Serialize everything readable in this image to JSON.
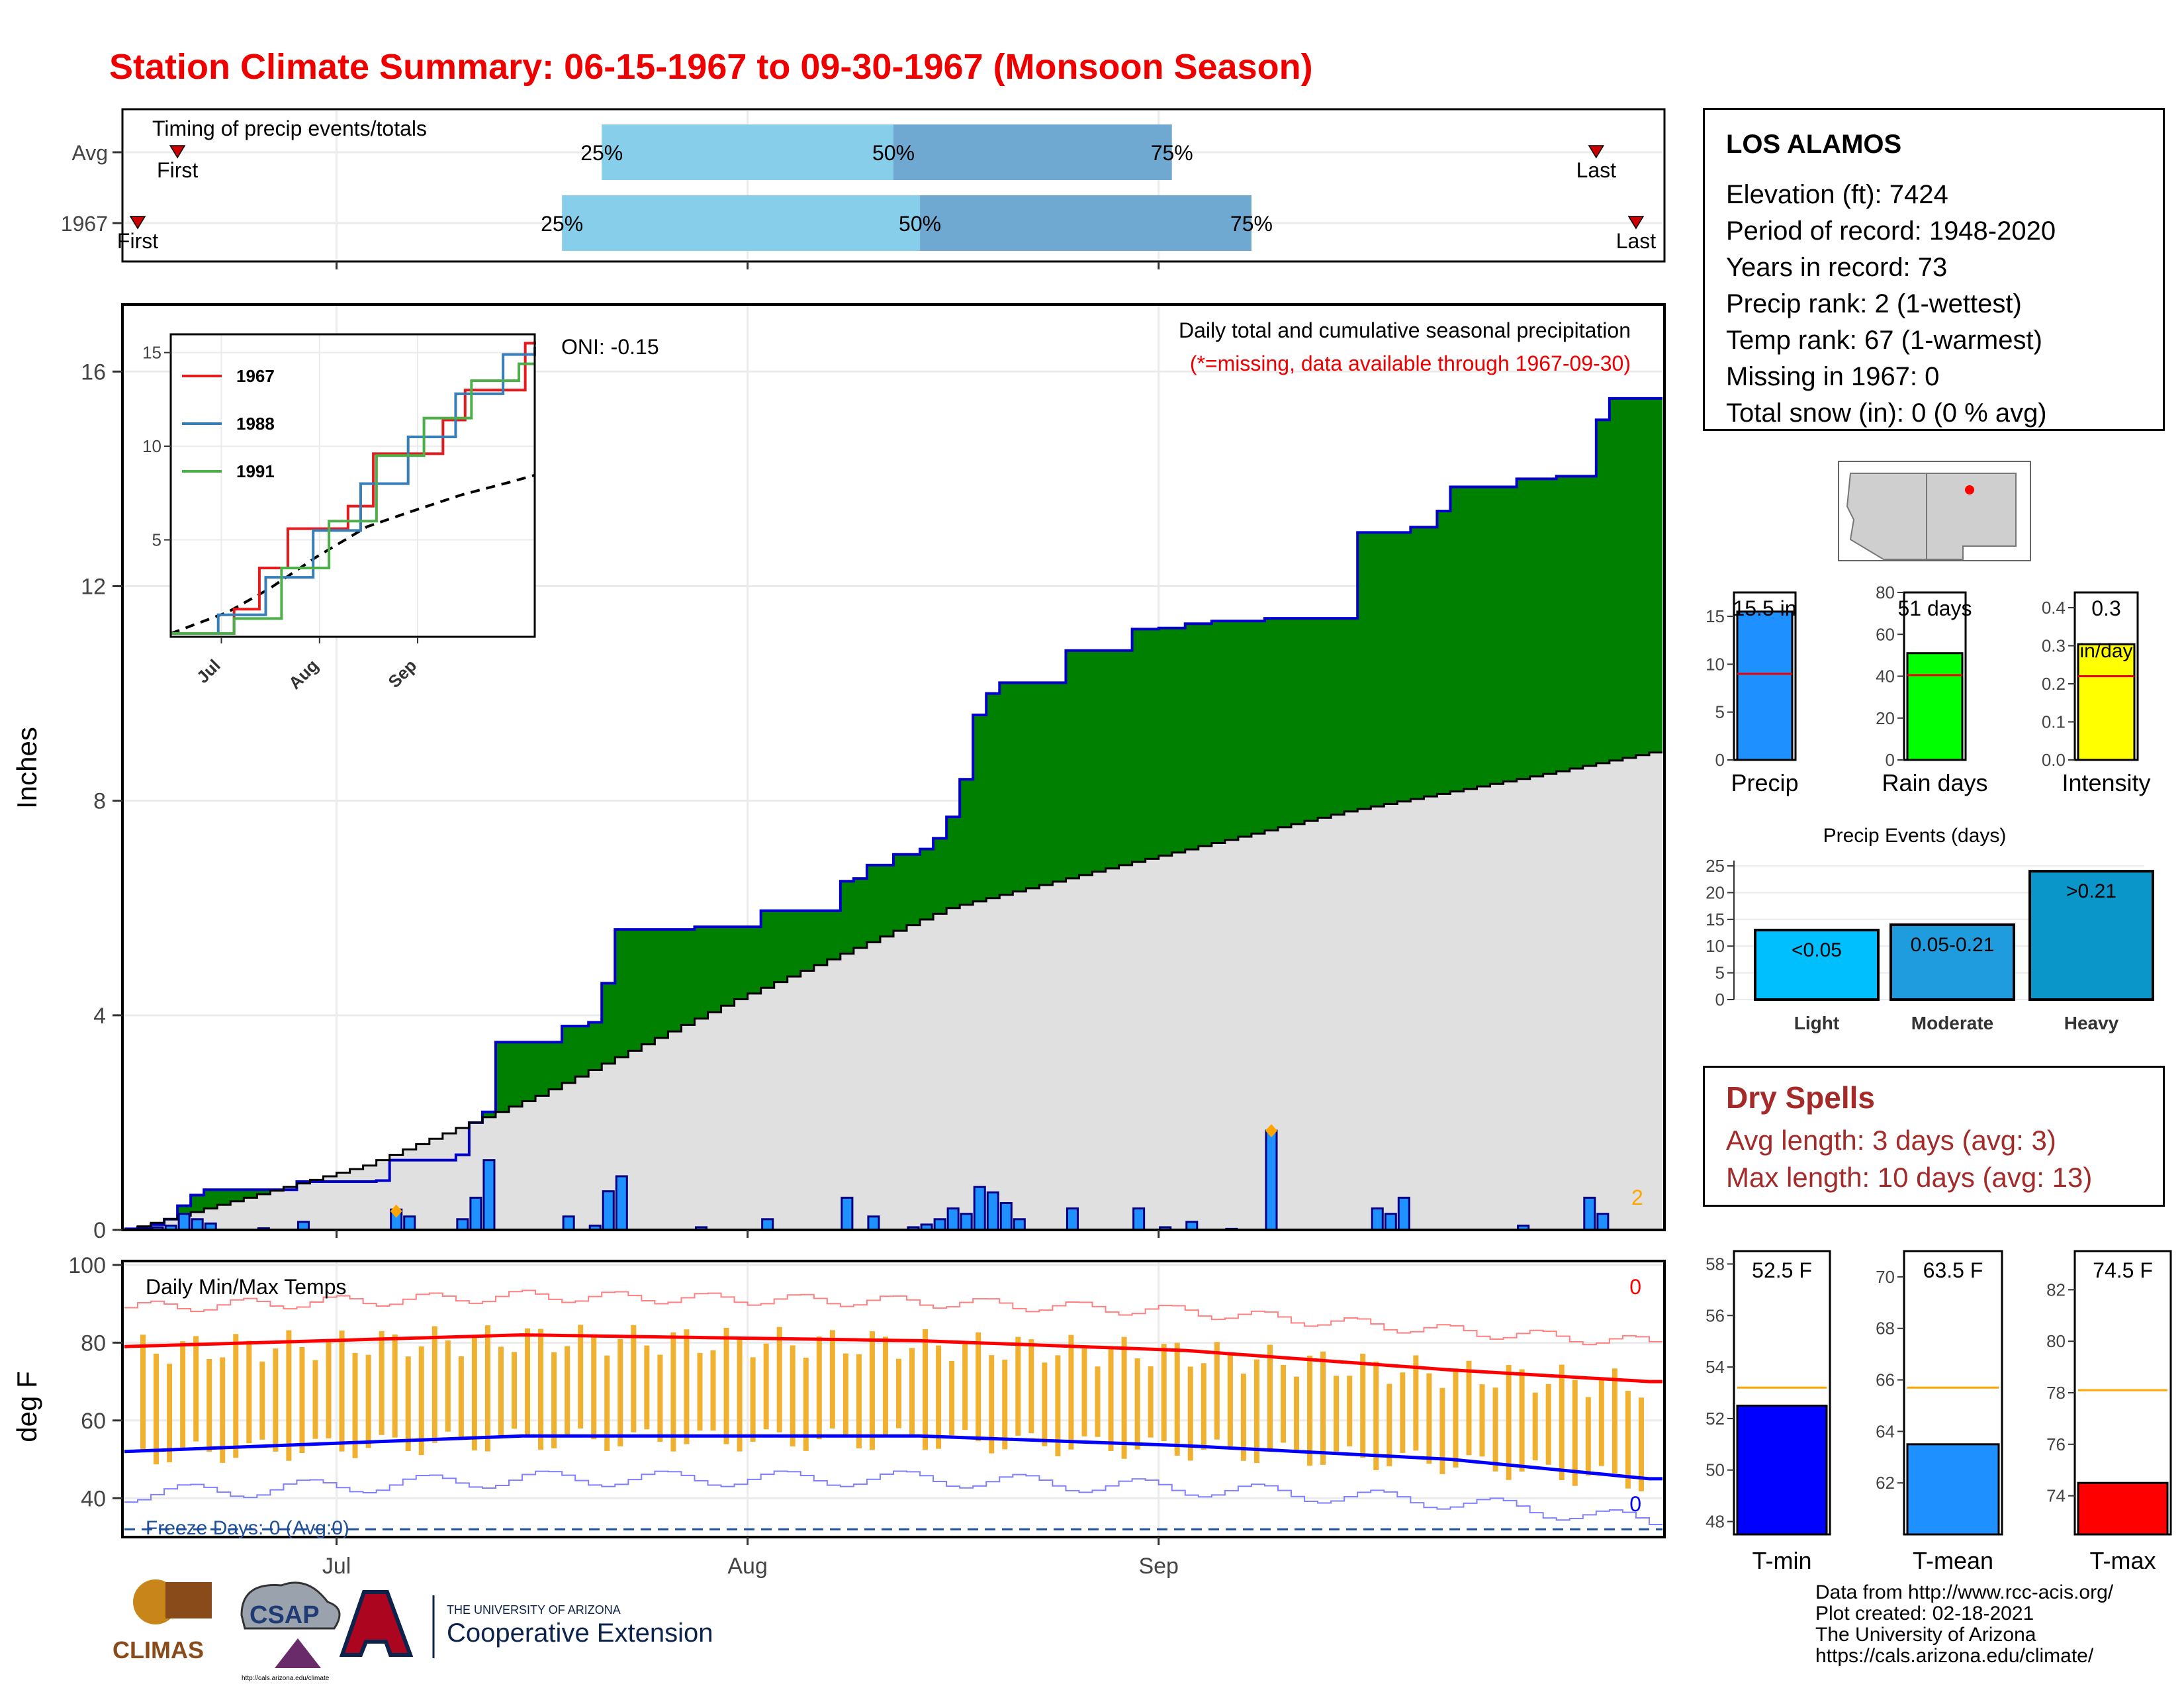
{
  "page_title": "Station Climate Summary: 06-15-1967 to 09-30-1967 (Monsoon Season)",
  "colors": {
    "title": "#ee0000",
    "cum_fill": "#008000",
    "cum_line": "#0000cc",
    "avg_fill": "#e0e0e0",
    "daily_bar": "#1e90ff",
    "tmax": "#ff0000",
    "tmin": "#0000ff",
    "range_bar": "#f0b030",
    "dry_text": "#a52a2a"
  },
  "timing": {
    "title": "Timing of precip events/totals",
    "rows": [
      {
        "label": "Avg",
        "first_day": 4,
        "p25_day": 36,
        "p50_day": 58,
        "p75_day": 79,
        "last_day": 111,
        "first_label": "First",
        "last_label": "Last",
        "p25": "25%",
        "p50": "50%",
        "p75": "75%"
      },
      {
        "label": "1967",
        "first_day": 1,
        "p25_day": 33,
        "p50_day": 60,
        "p75_day": 85,
        "last_day": 114,
        "first_label": "First",
        "last_label": "Last",
        "p25": "25%",
        "p50": "50%",
        "p75": "75%"
      }
    ]
  },
  "main_chart": {
    "title_line1": "Daily total and cumulative seasonal precipitation",
    "title_line2": "(*=missing, data available through 1967-09-30)",
    "oni": "ONI: -0.15",
    "ylabel": "Inches",
    "yticks": [
      "0",
      "4",
      "8",
      "12",
      "16"
    ],
    "xticks": [
      "Jul",
      "Aug",
      "Sep"
    ],
    "missing_count": "2"
  },
  "inset": {
    "yticks": [
      "5",
      "10",
      "15"
    ],
    "xticks": [
      "Jul",
      "Aug",
      "Sep"
    ],
    "legend": [
      {
        "name": "1967",
        "color": "#e41a1c"
      },
      {
        "name": "1988",
        "color": "#377eb8"
      },
      {
        "name": "1991",
        "color": "#4daf4a"
      }
    ]
  },
  "temp_chart": {
    "title": "Daily Min/Max Temps",
    "ylabel": "deg F",
    "yticks": [
      "40",
      "60",
      "80",
      "100"
    ],
    "freeze": "Freeze Days: 0 (Avg:0)",
    "hot_count": "0",
    "cold_count": "0"
  },
  "station": {
    "name": "LOS ALAMOS",
    "lines": [
      "Elevation (ft): 7424",
      "Period of record: 1948-2020",
      "Years in record: 73",
      "Precip rank: 2 (1-wettest)",
      "Temp rank: 67 (1-warmest)",
      "Missing in 1967: 0",
      "Total snow (in): 0 (0 % avg)"
    ]
  },
  "small_bars": [
    {
      "label": "Precip",
      "value_text": "15.5 in",
      "value": 15.5,
      "avg": 9.0,
      "ymax": 17.5,
      "yticks": [
        "0",
        "5",
        "10",
        "15"
      ],
      "color": "#1e90ff"
    },
    {
      "label": "Rain days",
      "value_text": "51 days",
      "value": 51,
      "avg": 40.5,
      "ymax": 80,
      "yticks": [
        "0",
        "20",
        "40",
        "60",
        "80"
      ],
      "color": "#00ff00"
    },
    {
      "label": "Intensity",
      "value_text": "0.3",
      "value_text2": "in/day",
      "value": 0.304,
      "avg": 0.22,
      "ymax": 0.44,
      "yticks": [
        "0.0",
        "0.1",
        "0.2",
        "0.3",
        "0.4"
      ],
      "color": "#ffff00"
    }
  ],
  "events": {
    "title": "Precip Events (days)",
    "yticks": [
      "0",
      "5",
      "10",
      "15",
      "20",
      "25"
    ],
    "bars": [
      {
        "label": "Light",
        "inner": "<0.05",
        "value": 13,
        "color": "#00bfff"
      },
      {
        "label": "Moderate",
        "inner": "0.05-0.21",
        "value": 14,
        "color": "#1e9cdd"
      },
      {
        "label": "Heavy",
        "inner": ">0.21",
        "value": 24,
        "color": "#0a96c8"
      }
    ]
  },
  "dry_spells": {
    "title": "Dry Spells",
    "lines": [
      "Avg length: 3 days (avg: 3)",
      "Max length: 10 days (avg: 13)"
    ]
  },
  "temp_bars": [
    {
      "label": "T-min",
      "value_text": "52.5 F",
      "value": 52.5,
      "avg": 53.2,
      "ymin": 47.5,
      "ymax": 58.5,
      "yticks": [
        "48",
        "50",
        "52",
        "54",
        "56",
        "58"
      ],
      "color": "#0000ff"
    },
    {
      "label": "T-mean",
      "value_text": "63.5 F",
      "value": 63.5,
      "avg": 65.7,
      "ymin": 60,
      "ymax": 71,
      "yticks": [
        "62",
        "64",
        "66",
        "68",
        "70"
      ],
      "color": "#1e90ff"
    },
    {
      "label": "T-max",
      "value_text": "74.5 F",
      "value": 74.5,
      "avg": 78.1,
      "ymin": 72.5,
      "ymax": 83.5,
      "yticks": [
        "74",
        "76",
        "78",
        "80",
        "82"
      ],
      "color": "#ff0000"
    }
  ],
  "credits": [
    "Data from http://www.rcc-acis.org/",
    "Plot created: 02-18-2021",
    "The University of Arizona",
    "https://cals.arizona.edu/climate/"
  ],
  "logos": {
    "climas": "CLIMAS",
    "csap": "CSAP",
    "csap_url": "http://cals.arizona.edu/climate",
    "ua_line1": "THE UNIVERSITY OF ARIZONA",
    "ua_line2": "Cooperative Extension"
  },
  "chart_data": [
    {
      "type": "area",
      "title": "Daily total and cumulative seasonal precipitation",
      "ylabel": "Inches",
      "x_start": "1967-06-15",
      "x_end": "1967-09-30",
      "ylim": [
        0,
        16.5
      ],
      "cumulative_1967_steps": [
        [
          0,
          0.02
        ],
        [
          1,
          0.05
        ],
        [
          2,
          0.1
        ],
        [
          3,
          0.2
        ],
        [
          4,
          0.45
        ],
        [
          5,
          0.65
        ],
        [
          6,
          0.75
        ],
        [
          13,
          0.9
        ],
        [
          19,
          0.92
        ],
        [
          20,
          1.3
        ],
        [
          25,
          1.4
        ],
        [
          26,
          2.0
        ],
        [
          27,
          2.2
        ],
        [
          28,
          3.5
        ],
        [
          33,
          3.8
        ],
        [
          35,
          3.87
        ],
        [
          36,
          4.6
        ],
        [
          37,
          5.6
        ],
        [
          43,
          5.65
        ],
        [
          48,
          5.95
        ],
        [
          54,
          6.5
        ],
        [
          55,
          6.55
        ],
        [
          56,
          6.8
        ],
        [
          58,
          7.0
        ],
        [
          60,
          7.1
        ],
        [
          61,
          7.3
        ],
        [
          62,
          7.7
        ],
        [
          63,
          8.4
        ],
        [
          64,
          9.6
        ],
        [
          65,
          10.0
        ],
        [
          66,
          10.2
        ],
        [
          71,
          10.8
        ],
        [
          76,
          11.2
        ],
        [
          78,
          11.22
        ],
        [
          80,
          11.3
        ],
        [
          82,
          11.35
        ],
        [
          86,
          11.4
        ],
        [
          93,
          13.0
        ],
        [
          97,
          13.1
        ],
        [
          99,
          13.4
        ],
        [
          100,
          13.85
        ],
        [
          105,
          14.0
        ],
        [
          108,
          14.05
        ],
        [
          111,
          15.1
        ],
        [
          112,
          15.5
        ]
      ],
      "average_cumulative": [
        [
          0,
          0
        ],
        [
          18,
          1.2
        ],
        [
          31,
          2.5
        ],
        [
          46,
          4.3
        ],
        [
          62,
          6.0
        ],
        [
          75,
          6.8
        ],
        [
          92,
          7.8
        ],
        [
          107,
          8.5
        ],
        [
          115,
          8.9
        ]
      ],
      "daily_bars": [
        [
          1,
          0.03
        ],
        [
          2,
          0.05
        ],
        [
          3,
          0.08
        ],
        [
          4,
          0.3
        ],
        [
          5,
          0.2
        ],
        [
          6,
          0.12
        ],
        [
          10,
          0.03
        ],
        [
          13,
          0.15
        ],
        [
          20,
          0.38
        ],
        [
          21,
          0.25
        ],
        [
          25,
          0.2
        ],
        [
          26,
          0.6
        ],
        [
          27,
          1.3
        ],
        [
          33,
          0.25
        ],
        [
          35,
          0.08
        ],
        [
          36,
          0.72
        ],
        [
          37,
          1.0
        ],
        [
          43,
          0.05
        ],
        [
          48,
          0.2
        ],
        [
          54,
          0.6
        ],
        [
          56,
          0.25
        ],
        [
          59,
          0.05
        ],
        [
          60,
          0.1
        ],
        [
          61,
          0.2
        ],
        [
          62,
          0.4
        ],
        [
          63,
          0.3
        ],
        [
          64,
          0.8
        ],
        [
          65,
          0.7
        ],
        [
          66,
          0.5
        ],
        [
          67,
          0.2
        ],
        [
          71,
          0.4
        ],
        [
          76,
          0.4
        ],
        [
          78,
          0.05
        ],
        [
          80,
          0.15
        ],
        [
          83,
          0.02
        ],
        [
          86,
          1.85
        ],
        [
          94,
          0.4
        ],
        [
          95,
          0.3
        ],
        [
          96,
          0.6
        ],
        [
          105,
          0.08
        ],
        [
          110,
          0.6
        ],
        [
          111,
          0.3
        ]
      ],
      "missing_markers": [
        [
          20,
          0.35
        ],
        [
          86,
          1.85
        ]
      ]
    },
    {
      "type": "line",
      "title": "Inset: cumulative precipitation analog years",
      "series": [
        {
          "name": "1967",
          "points": [
            [
              0,
              0
            ],
            [
              20,
              1.3
            ],
            [
              28,
              3.5
            ],
            [
              37,
              5.6
            ],
            [
              56,
              6.8
            ],
            [
              64,
              9.6
            ],
            [
              86,
              11.4
            ],
            [
              93,
              13.0
            ],
            [
              112,
              15.5
            ],
            [
              115,
              15.6
            ]
          ]
        },
        {
          "name": "1988",
          "points": [
            [
              0,
              0
            ],
            [
              15,
              1.0
            ],
            [
              30,
              3.0
            ],
            [
              45,
              5.5
            ],
            [
              60,
              8.0
            ],
            [
              75,
              10.5
            ],
            [
              90,
              12.8
            ],
            [
              105,
              14.9
            ],
            [
              115,
              15.3
            ]
          ]
        },
        {
          "name": "1991",
          "points": [
            [
              0,
              0
            ],
            [
              20,
              0.8
            ],
            [
              35,
              3.5
            ],
            [
              50,
              6.0
            ],
            [
              65,
              9.5
            ],
            [
              80,
              11.5
            ],
            [
              95,
              13.5
            ],
            [
              110,
              14.4
            ],
            [
              115,
              14.4
            ]
          ]
        }
      ]
    },
    {
      "type": "bar",
      "title": "Daily Min/Max Temps",
      "ylabel": "deg F",
      "ylim": [
        30,
        100
      ],
      "tmax_avg": [
        [
          0,
          79
        ],
        [
          30,
          82
        ],
        [
          60,
          80.5
        ],
        [
          80,
          78
        ],
        [
          100,
          73
        ],
        [
          115,
          70
        ]
      ],
      "tmin_avg": [
        [
          0,
          52
        ],
        [
          30,
          56
        ],
        [
          60,
          56
        ],
        [
          80,
          53.5
        ],
        [
          100,
          50
        ],
        [
          115,
          45
        ]
      ]
    }
  ]
}
